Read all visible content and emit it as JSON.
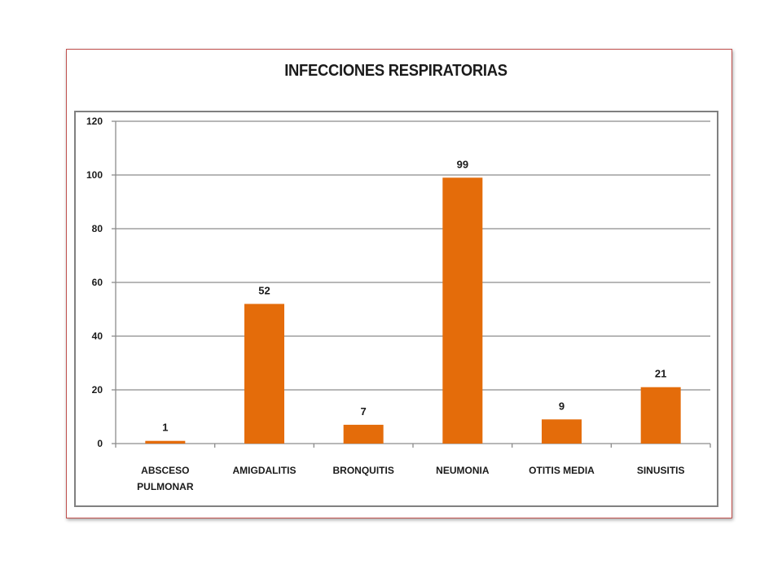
{
  "chart_data": {
    "type": "bar",
    "title": "INFECCIONES RESPIRATORIAS",
    "xlabel": "",
    "ylabel": "",
    "categories": [
      [
        "ABSCESO",
        "PULMONAR"
      ],
      [
        "AMIGDALITIS"
      ],
      [
        "BRONQUITIS"
      ],
      [
        "NEUMONIA"
      ],
      [
        "OTITIS MEDIA"
      ],
      [
        "SINUSITIS"
      ]
    ],
    "values": [
      1,
      52,
      7,
      99,
      9,
      21
    ],
    "ylim": [
      0,
      120
    ],
    "yticks": [
      0,
      20,
      40,
      60,
      80,
      100,
      120
    ],
    "grid": true,
    "legend": "none",
    "bar_color": "#e46c0a",
    "grid_color": "#8c8c8c",
    "frame_color": "#c0504d"
  }
}
